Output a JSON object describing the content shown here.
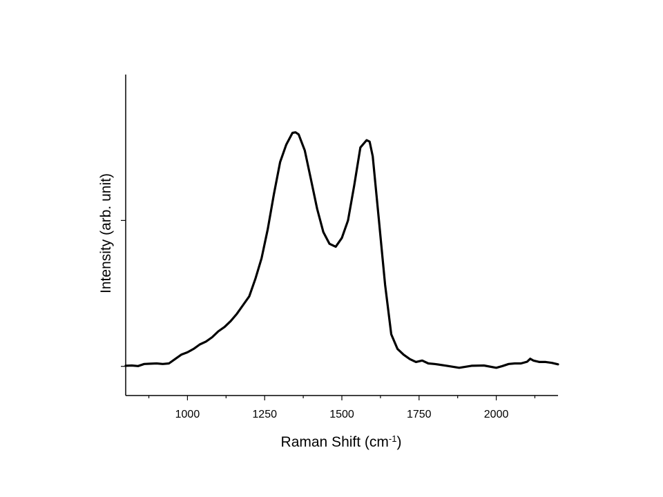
{
  "chart_data": {
    "type": "line",
    "title": "",
    "xlabel": "Raman Shift (cm",
    "xlabel_superscript": "-1",
    "xlabel_suffix": ")",
    "ylabel": "Intensity (arb. unit)",
    "xlim": [
      800,
      2200
    ],
    "ylim": [
      -0.1,
      1.0
    ],
    "x_major_ticks": [
      1000,
      1250,
      1500,
      1750,
      2000
    ],
    "x_tick_labels": [
      "1000",
      "1250",
      "1500",
      "1750",
      "2000"
    ],
    "x_minor_ticks": [
      875,
      1125,
      1375,
      1625,
      1875,
      2125
    ],
    "y_ticks": [
      0,
      0.5
    ],
    "y_tick_labels": [],
    "grid": false,
    "legend": "none",
    "line_color": "#000000",
    "series": [
      {
        "x": [
          800,
          820,
          840,
          860,
          880,
          900,
          920,
          940,
          960,
          980,
          1000,
          1020,
          1040,
          1060,
          1080,
          1100,
          1120,
          1140,
          1160,
          1180,
          1200,
          1220,
          1240,
          1260,
          1280,
          1300,
          1320,
          1340,
          1350,
          1360,
          1380,
          1400,
          1420,
          1440,
          1460,
          1480,
          1500,
          1520,
          1540,
          1560,
          1580,
          1590,
          1600,
          1620,
          1640,
          1660,
          1680,
          1700,
          1720,
          1740,
          1760,
          1780,
          1800,
          1840,
          1880,
          1920,
          1960,
          2000,
          2020,
          2040,
          2060,
          2080,
          2100,
          2110,
          2120,
          2140,
          2160,
          2180,
          2200
        ],
        "y": [
          0.002,
          0.003,
          0.001,
          0.008,
          0.009,
          0.01,
          0.008,
          0.01,
          0.025,
          0.04,
          0.048,
          0.06,
          0.075,
          0.085,
          0.1,
          0.12,
          0.135,
          0.155,
          0.18,
          0.21,
          0.24,
          0.3,
          0.37,
          0.47,
          0.59,
          0.7,
          0.76,
          0.8,
          0.802,
          0.795,
          0.74,
          0.64,
          0.54,
          0.46,
          0.42,
          0.41,
          0.44,
          0.5,
          0.62,
          0.75,
          0.775,
          0.77,
          0.72,
          0.5,
          0.28,
          0.11,
          0.06,
          0.04,
          0.025,
          0.015,
          0.02,
          0.01,
          0.008,
          0.002,
          -0.005,
          0.002,
          0.003,
          -0.005,
          0.001,
          0.008,
          0.01,
          0.01,
          0.016,
          0.026,
          0.02,
          0.015,
          0.015,
          0.012,
          0.007
        ]
      }
    ]
  }
}
